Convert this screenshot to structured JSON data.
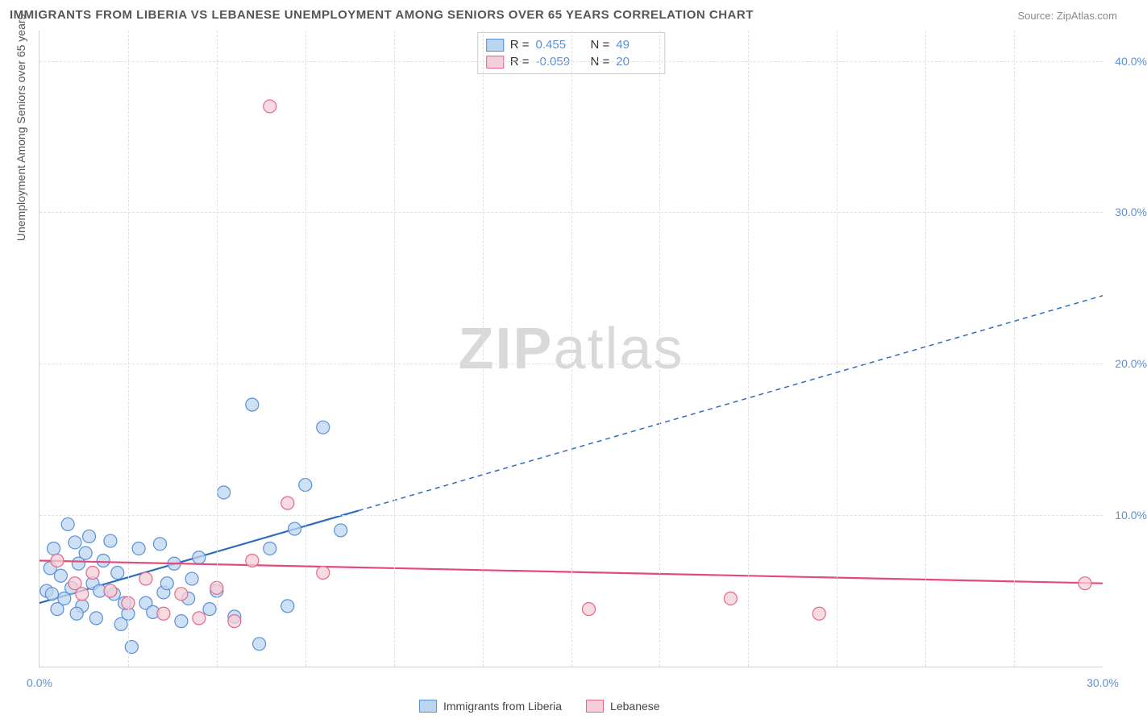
{
  "title": "IMMIGRANTS FROM LIBERIA VS LEBANESE UNEMPLOYMENT AMONG SENIORS OVER 65 YEARS CORRELATION CHART",
  "source_label": "Source: ",
  "source_value": "ZipAtlas.com",
  "y_axis_title": "Unemployment Among Seniors over 65 years",
  "watermark_bold": "ZIP",
  "watermark_light": "atlas",
  "chart": {
    "type": "scatter",
    "background_color": "#ffffff",
    "grid_color": "#e0e0e0",
    "axis_color": "#d0d0d0",
    "tick_label_color": "#5b8fd6",
    "xlim": [
      0,
      30
    ],
    "ylim": [
      0,
      42
    ],
    "x_ticks": [
      0,
      30
    ],
    "x_tick_labels": [
      "0.0%",
      "30.0%"
    ],
    "y_ticks": [
      10,
      20,
      30,
      40
    ],
    "y_tick_labels": [
      "10.0%",
      "20.0%",
      "30.0%",
      "40.0%"
    ],
    "x_minor_grid": [
      2.5,
      5,
      7.5,
      10,
      12.5,
      15,
      17.5,
      20,
      22.5,
      25,
      27.5
    ],
    "marker_radius": 8,
    "marker_stroke_width": 1.2,
    "trend_line_width": 2.2,
    "trend_dash": "6,5"
  },
  "series": [
    {
      "key": "liberia",
      "label": "Immigrants from Liberia",
      "fill": "#bcd5f0",
      "stroke": "#5b8fd6",
      "line_color": "#2e6cc0",
      "r_label": "R =",
      "r_value": "0.455",
      "n_label": "N =",
      "n_value": "49",
      "trend": {
        "x1": 0,
        "y1": 4.2,
        "x2_solid": 9,
        "y2_solid": 10.3,
        "x2": 30,
        "y2": 24.5
      },
      "points": [
        [
          0.2,
          5.0
        ],
        [
          0.3,
          6.5
        ],
        [
          0.4,
          7.8
        ],
        [
          0.5,
          3.8
        ],
        [
          0.6,
          6.0
        ],
        [
          0.7,
          4.5
        ],
        [
          0.8,
          9.4
        ],
        [
          0.9,
          5.2
        ],
        [
          1.0,
          8.2
        ],
        [
          1.1,
          6.8
        ],
        [
          1.2,
          4.0
        ],
        [
          1.3,
          7.5
        ],
        [
          1.4,
          8.6
        ],
        [
          1.5,
          5.5
        ],
        [
          1.6,
          3.2
        ],
        [
          1.8,
          7.0
        ],
        [
          2.0,
          8.3
        ],
        [
          2.1,
          4.8
        ],
        [
          2.2,
          6.2
        ],
        [
          2.3,
          2.8
        ],
        [
          2.5,
          3.5
        ],
        [
          2.6,
          1.3
        ],
        [
          2.8,
          7.8
        ],
        [
          3.0,
          4.2
        ],
        [
          3.2,
          3.6
        ],
        [
          3.4,
          8.1
        ],
        [
          3.5,
          4.9
        ],
        [
          3.8,
          6.8
        ],
        [
          4.0,
          3.0
        ],
        [
          4.2,
          4.5
        ],
        [
          4.5,
          7.2
        ],
        [
          4.8,
          3.8
        ],
        [
          5.0,
          5.0
        ],
        [
          5.2,
          11.5
        ],
        [
          5.5,
          3.3
        ],
        [
          6.0,
          17.3
        ],
        [
          6.2,
          1.5
        ],
        [
          6.5,
          7.8
        ],
        [
          7.0,
          4.0
        ],
        [
          7.2,
          9.1
        ],
        [
          7.5,
          12.0
        ],
        [
          8.0,
          15.8
        ],
        [
          8.5,
          9.0
        ],
        [
          4.3,
          5.8
        ],
        [
          1.7,
          5.0
        ],
        [
          2.4,
          4.2
        ],
        [
          3.6,
          5.5
        ],
        [
          0.35,
          4.8
        ],
        [
          1.05,
          3.5
        ]
      ]
    },
    {
      "key": "lebanese",
      "label": "Lebanese",
      "fill": "#f6cdd8",
      "stroke": "#e06a8a",
      "line_color": "#e44a77",
      "r_label": "R =",
      "r_value": "-0.059",
      "n_label": "N =",
      "n_value": "20",
      "trend": {
        "x1": 0,
        "y1": 7.0,
        "x2_solid": 30,
        "y2_solid": 5.5,
        "x2": 30,
        "y2": 5.5
      },
      "points": [
        [
          0.5,
          7.0
        ],
        [
          1.0,
          5.5
        ],
        [
          1.2,
          4.8
        ],
        [
          1.5,
          6.2
        ],
        [
          2.0,
          5.0
        ],
        [
          2.5,
          4.2
        ],
        [
          3.0,
          5.8
        ],
        [
          3.5,
          3.5
        ],
        [
          4.0,
          4.8
        ],
        [
          4.5,
          3.2
        ],
        [
          5.0,
          5.2
        ],
        [
          5.5,
          3.0
        ],
        [
          6.5,
          37.0
        ],
        [
          7.0,
          10.8
        ],
        [
          8.0,
          6.2
        ],
        [
          15.5,
          3.8
        ],
        [
          19.5,
          4.5
        ],
        [
          22.0,
          3.5
        ],
        [
          29.5,
          5.5
        ],
        [
          6.0,
          7.0
        ]
      ]
    }
  ]
}
